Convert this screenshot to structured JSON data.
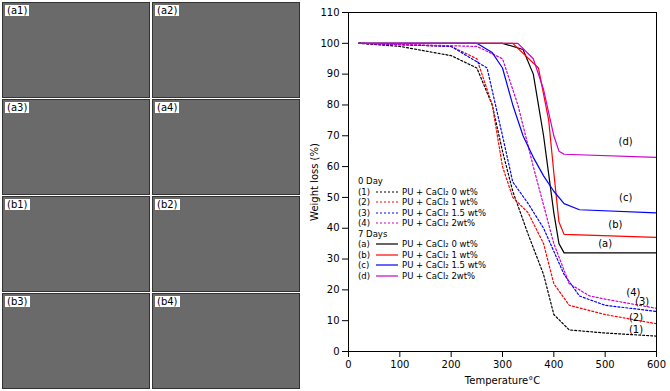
{
  "chart_data": {
    "type": "line",
    "x_label": "Temperature°C",
    "y_label": "Weight loss (%)",
    "xlim": [
      0,
      600
    ],
    "xticks": [
      0,
      100,
      200,
      300,
      400,
      500,
      600
    ],
    "ylim": [
      0,
      110
    ],
    "yticks": [
      0,
      10,
      20,
      30,
      40,
      50,
      60,
      70,
      80,
      90,
      100,
      110
    ],
    "grid": false,
    "legend": "left",
    "series": [
      {
        "group": "0 Day",
        "label": "(1)",
        "name": "PU + CaCl₂ 0 wt%",
        "color": "#000000",
        "line_style": "dotted",
        "x": [
          20,
          100,
          200,
          250,
          280,
          300,
          320,
          350,
          380,
          400,
          430,
          500,
          600
        ],
        "values": [
          100,
          99,
          96,
          92,
          80,
          65,
          52,
          38,
          25,
          12,
          7,
          6,
          5
        ]
      },
      {
        "group": "0 Day",
        "label": "(2)",
        "name": "PU + CaCl₂ 1 wt%",
        "color": "#ff0000",
        "line_style": "dotted",
        "x": [
          20,
          200,
          250,
          280,
          300,
          320,
          350,
          380,
          400,
          430,
          500,
          600
        ],
        "values": [
          100,
          99,
          95,
          80,
          60,
          50,
          45,
          35,
          22,
          15,
          12,
          9
        ]
      },
      {
        "group": "0 Day",
        "label": "(3)",
        "name": "PU + CaCl₂ 1.5 wt%",
        "color": "#0000ff",
        "line_style": "dotted",
        "x": [
          20,
          200,
          270,
          300,
          320,
          350,
          380,
          420,
          450,
          500,
          600
        ],
        "values": [
          100,
          99,
          92,
          70,
          55,
          48,
          40,
          25,
          18,
          15,
          13
        ]
      },
      {
        "group": "0 Day",
        "label": "(4)",
        "name": "PU + CaCl₂ 2wt%",
        "color": "#cc00cc",
        "line_style": "dotted",
        "x": [
          20,
          250,
          300,
          330,
          360,
          400,
          430,
          470,
          500,
          600
        ],
        "values": [
          100,
          99,
          95,
          80,
          60,
          35,
          22,
          18,
          17,
          14
        ]
      },
      {
        "group": "7 Days",
        "label": "(a)",
        "name": "PU + CaCl₂ 0 wt%",
        "color": "#000000",
        "line_style": "solid",
        "x": [
          20,
          300,
          340,
          360,
          380,
          400,
          410,
          420,
          600
        ],
        "values": [
          100,
          100,
          98,
          90,
          70,
          45,
          35,
          32,
          32
        ]
      },
      {
        "group": "7 Days",
        "label": "(b)",
        "name": "PU + CaCl₂ 1 wt%",
        "color": "#ff0000",
        "line_style": "solid",
        "x": [
          20,
          320,
          370,
          390,
          400,
          410,
          420,
          600
        ],
        "values": [
          100,
          100,
          92,
          75,
          58,
          42,
          38,
          37
        ]
      },
      {
        "group": "7 Days",
        "label": "(c)",
        "name": "PU + CaCl₂ 1.5 wt%",
        "color": "#0000ff",
        "line_style": "solid",
        "x": [
          20,
          250,
          280,
          300,
          320,
          340,
          360,
          380,
          400,
          420,
          450,
          600
        ],
        "values": [
          100,
          100,
          97,
          92,
          80,
          70,
          63,
          57,
          52,
          48,
          46,
          45
        ]
      },
      {
        "group": "7 Days",
        "label": "(d)",
        "name": "PU + CaCl₂ 2wt%",
        "color": "#cc00cc",
        "line_style": "solid",
        "x": [
          20,
          330,
          360,
          380,
          400,
          410,
          420,
          600
        ],
        "values": [
          100,
          100,
          95,
          85,
          70,
          65,
          64,
          63
        ]
      }
    ],
    "annotations": [
      {
        "text": "(d)",
        "x": 540,
        "y": 68
      },
      {
        "text": "(c)",
        "x": 540,
        "y": 50
      },
      {
        "text": "(b)",
        "x": 520,
        "y": 41
      },
      {
        "text": "(a)",
        "x": 500,
        "y": 35
      },
      {
        "text": "(4)",
        "x": 555,
        "y": 19
      },
      {
        "text": "(3)",
        "x": 572,
        "y": 16
      },
      {
        "text": "(2)",
        "x": 560,
        "y": 11
      },
      {
        "text": "(1)",
        "x": 560,
        "y": 7
      }
    ]
  },
  "micrographs": {
    "panels": [
      "(a1)",
      "(a2)",
      "(a3)",
      "(a4)",
      "(b1)",
      "(b2)",
      "(b3)",
      "(b4)"
    ]
  }
}
